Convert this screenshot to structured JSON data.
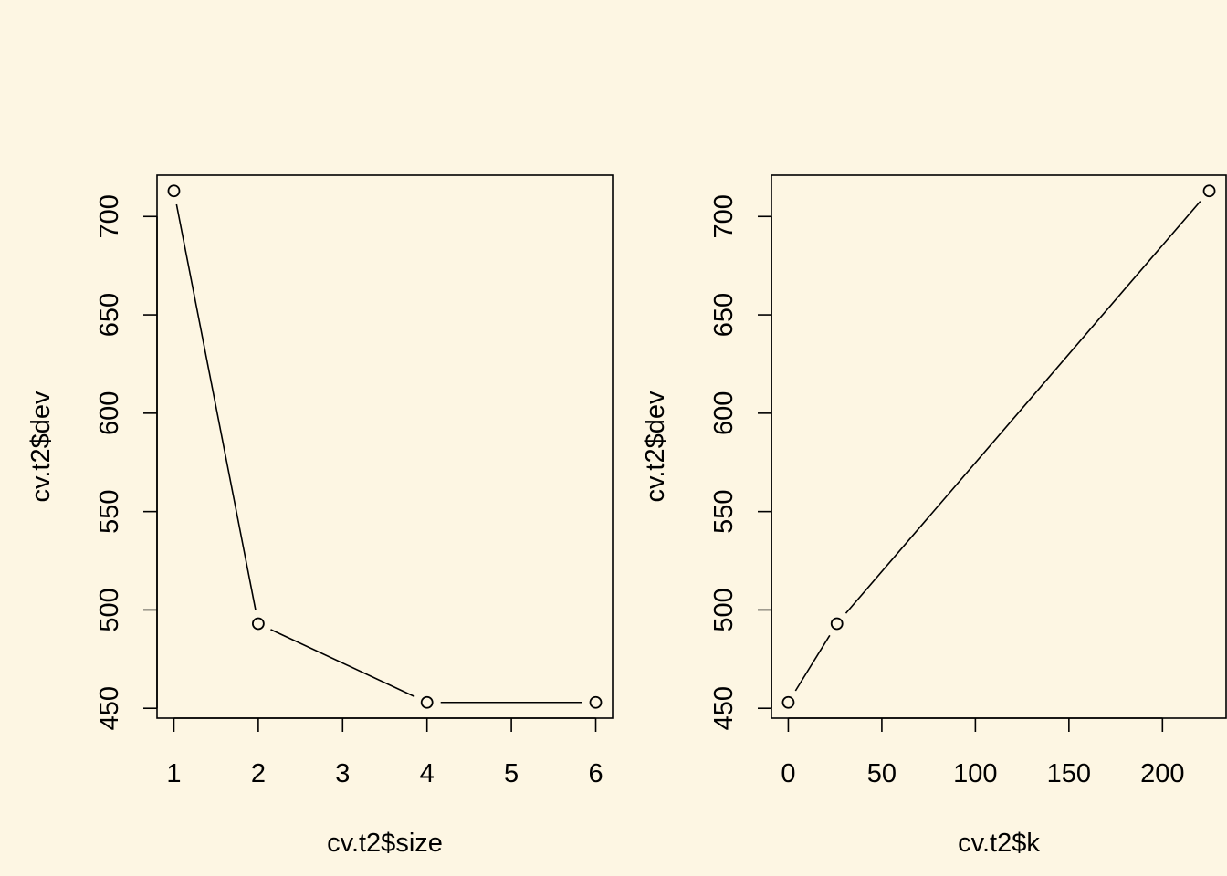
{
  "background": "#FDF6E3",
  "chart_data": [
    {
      "type": "line",
      "xlabel": "cv.t2$size",
      "ylabel": "cv.t2$dev",
      "points": [
        {
          "x": 1,
          "y": 713
        },
        {
          "x": 2,
          "y": 493
        },
        {
          "x": 4,
          "y": 453
        },
        {
          "x": 6,
          "y": 453
        }
      ],
      "xlim": [
        0.8,
        6.2
      ],
      "ylim": [
        445,
        721
      ],
      "xticks": [
        1,
        2,
        3,
        4,
        5,
        6
      ],
      "yticks": [
        450,
        500,
        550,
        600,
        650,
        700
      ]
    },
    {
      "type": "line",
      "xlabel": "cv.t2$k",
      "ylabel": "cv.t2$dev",
      "points": [
        {
          "x": 0,
          "y": 453
        },
        {
          "x": 26,
          "y": 493
        },
        {
          "x": 225,
          "y": 713
        }
      ],
      "xlim": [
        -9,
        234
      ],
      "ylim": [
        445,
        721
      ],
      "xticks": [
        0,
        50,
        100,
        150,
        200
      ],
      "yticks": [
        450,
        500,
        550,
        600,
        650,
        700
      ]
    }
  ]
}
